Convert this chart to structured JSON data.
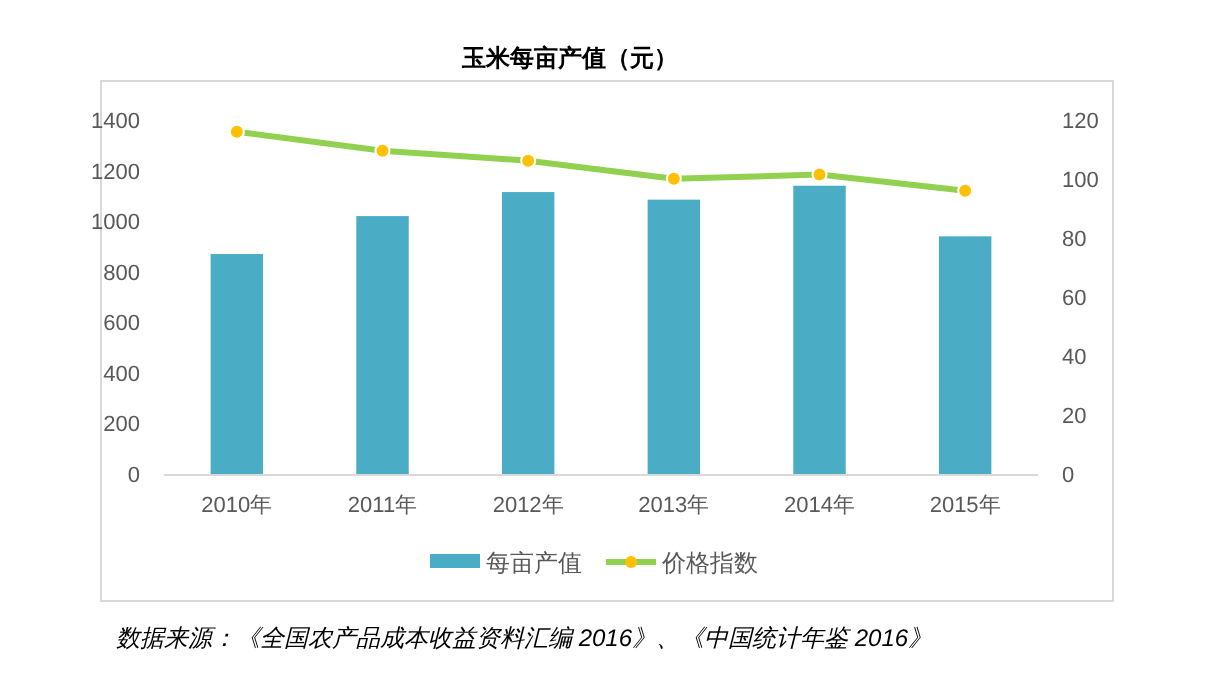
{
  "chart_data": {
    "type": "bar",
    "title": "玉米每亩产值（元）",
    "categories": [
      "2010年",
      "2011年",
      "2012年",
      "2013年",
      "2014年",
      "2015年"
    ],
    "series": [
      {
        "name": "每亩产值",
        "color": "#4bacc6",
        "values": [
          870,
          1020,
          1115,
          1085,
          1140,
          940
        ]
      },
      {
        "name": "价格指数",
        "type": "line",
        "axis": "y2",
        "color": "#92d050",
        "marker": "circle",
        "values": [
          116,
          109.6,
          106.2,
          100.1,
          101.5,
          96
        ]
      }
    ],
    "ylim": [
      0,
      1400
    ],
    "yticks": [
      0,
      200,
      400,
      600,
      800,
      1000,
      1200,
      1400
    ],
    "y2lim": [
      0,
      120
    ],
    "y2ticks": [
      0,
      20,
      40,
      60,
      80,
      100,
      120
    ],
    "legend": "bottom",
    "annotations": [
      "数据来源：《全国农产品成本收益资料汇编 2016》、《中国统计年鉴 2016》"
    ]
  }
}
